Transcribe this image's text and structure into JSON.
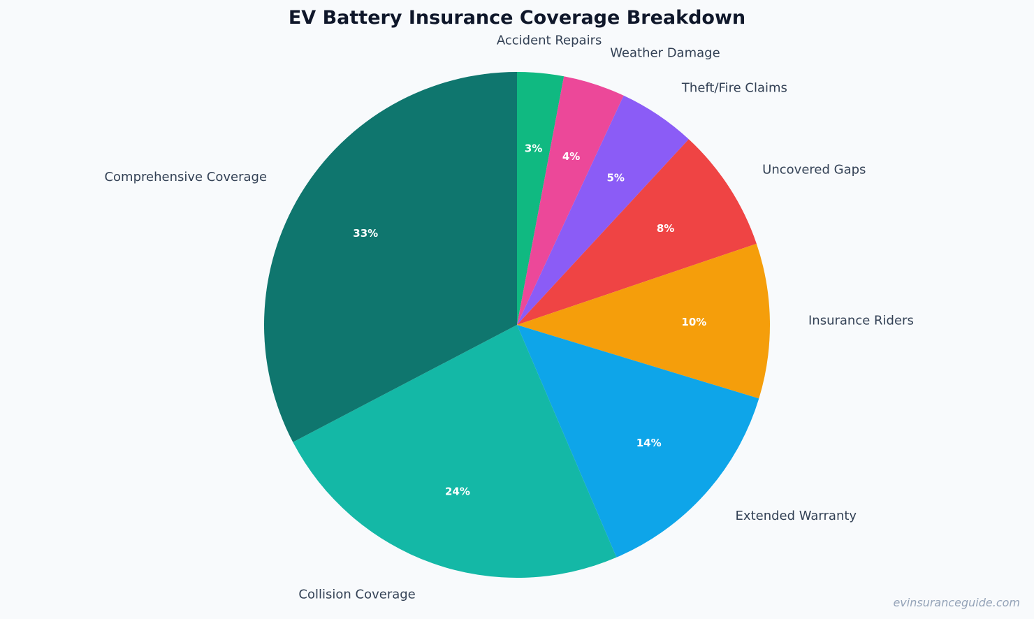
{
  "chart_data": {
    "type": "pie",
    "title": "EV Battery Insurance Coverage Breakdown",
    "start": "top, clockwise",
    "slices": [
      {
        "label": "Accident Repairs",
        "value": 3,
        "display": "3%",
        "color": "#10b981"
      },
      {
        "label": "Weather Damage",
        "value": 4,
        "display": "4%",
        "color": "#ec4899"
      },
      {
        "label": "Theft/Fire Claims",
        "value": 5,
        "display": "5%",
        "color": "#8b5cf6"
      },
      {
        "label": "Uncovered Gaps",
        "value": 8,
        "display": "8%",
        "color": "#ef4444"
      },
      {
        "label": "Insurance Riders",
        "value": 10,
        "display": "10%",
        "color": "#f59e0b"
      },
      {
        "label": "Extended Warranty",
        "value": 14,
        "display": "14%",
        "color": "#0ea5e9"
      },
      {
        "label": "Collision Coverage",
        "value": 24,
        "display": "24%",
        "color": "#14b8a6"
      },
      {
        "label": "Comprehensive Coverage",
        "value": 33,
        "display": "33%",
        "color": "#0f766e"
      }
    ]
  },
  "watermark": "evinsuranceguide.com"
}
